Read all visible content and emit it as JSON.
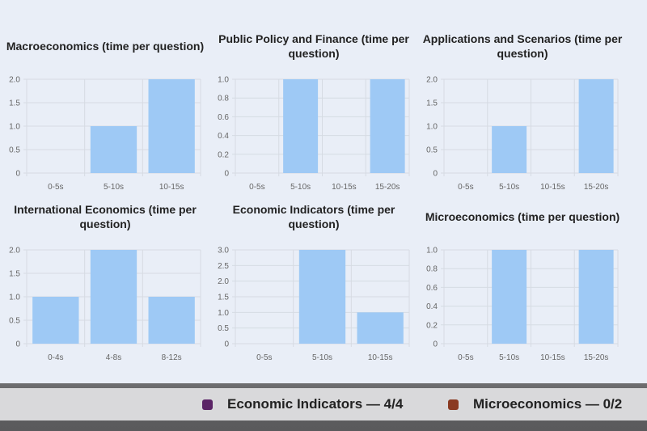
{
  "chart_data": [
    {
      "type": "bar",
      "title": "Macroeconomics (time per question)",
      "categories": [
        "0-5s",
        "5-10s",
        "10-15s"
      ],
      "values": [
        0,
        1,
        2
      ],
      "ylim": [
        0,
        2
      ],
      "yticks": [
        "0",
        "0.5",
        "1.0",
        "1.5",
        "2.0"
      ],
      "grid": true
    },
    {
      "type": "bar",
      "title": "Public Policy and Finance (time per question)",
      "categories": [
        "0-5s",
        "5-10s",
        "10-15s",
        "15-20s"
      ],
      "values": [
        0,
        1,
        0,
        1
      ],
      "ylim": [
        0,
        1
      ],
      "yticks": [
        "0",
        "0.2",
        "0.4",
        "0.6",
        "0.8",
        "1.0"
      ],
      "grid": true
    },
    {
      "type": "bar",
      "title": "Applications and Scenarios (time per question)",
      "categories": [
        "0-5s",
        "5-10s",
        "10-15s",
        "15-20s"
      ],
      "values": [
        0,
        1,
        0,
        2
      ],
      "ylim": [
        0,
        2
      ],
      "yticks": [
        "0",
        "0.5",
        "1.0",
        "1.5",
        "2.0"
      ],
      "grid": true
    },
    {
      "type": "bar",
      "title": "International Economics (time per question)",
      "categories": [
        "0-4s",
        "4-8s",
        "8-12s"
      ],
      "values": [
        1,
        2,
        1
      ],
      "ylim": [
        0,
        2
      ],
      "yticks": [
        "0",
        "0.5",
        "1.0",
        "1.5",
        "2.0"
      ],
      "grid": true
    },
    {
      "type": "bar",
      "title": "Economic Indicators (time per question)",
      "categories": [
        "0-5s",
        "5-10s",
        "10-15s"
      ],
      "values": [
        0,
        3,
        1
      ],
      "ylim": [
        0,
        3
      ],
      "yticks": [
        "0",
        "0.5",
        "1.0",
        "1.5",
        "2.0",
        "2.5",
        "3.0"
      ],
      "grid": true
    },
    {
      "type": "bar",
      "title": "Microeconomics (time per question)",
      "categories": [
        "0-5s",
        "5-10s",
        "10-15s",
        "15-20s"
      ],
      "values": [
        0,
        1,
        0,
        1
      ],
      "ylim": [
        0,
        1
      ],
      "yticks": [
        "0",
        "0.2",
        "0.4",
        "0.6",
        "0.8",
        "1.0"
      ],
      "grid": true
    }
  ],
  "colors": {
    "bar": "#9ec9f5",
    "grid": "#d6dbe3"
  },
  "legend": [
    {
      "label": "Economic Indicators — 4/4",
      "color": "#5b2466"
    },
    {
      "label": "Microeconomics — 0/2",
      "color": "#8a3a22"
    }
  ]
}
